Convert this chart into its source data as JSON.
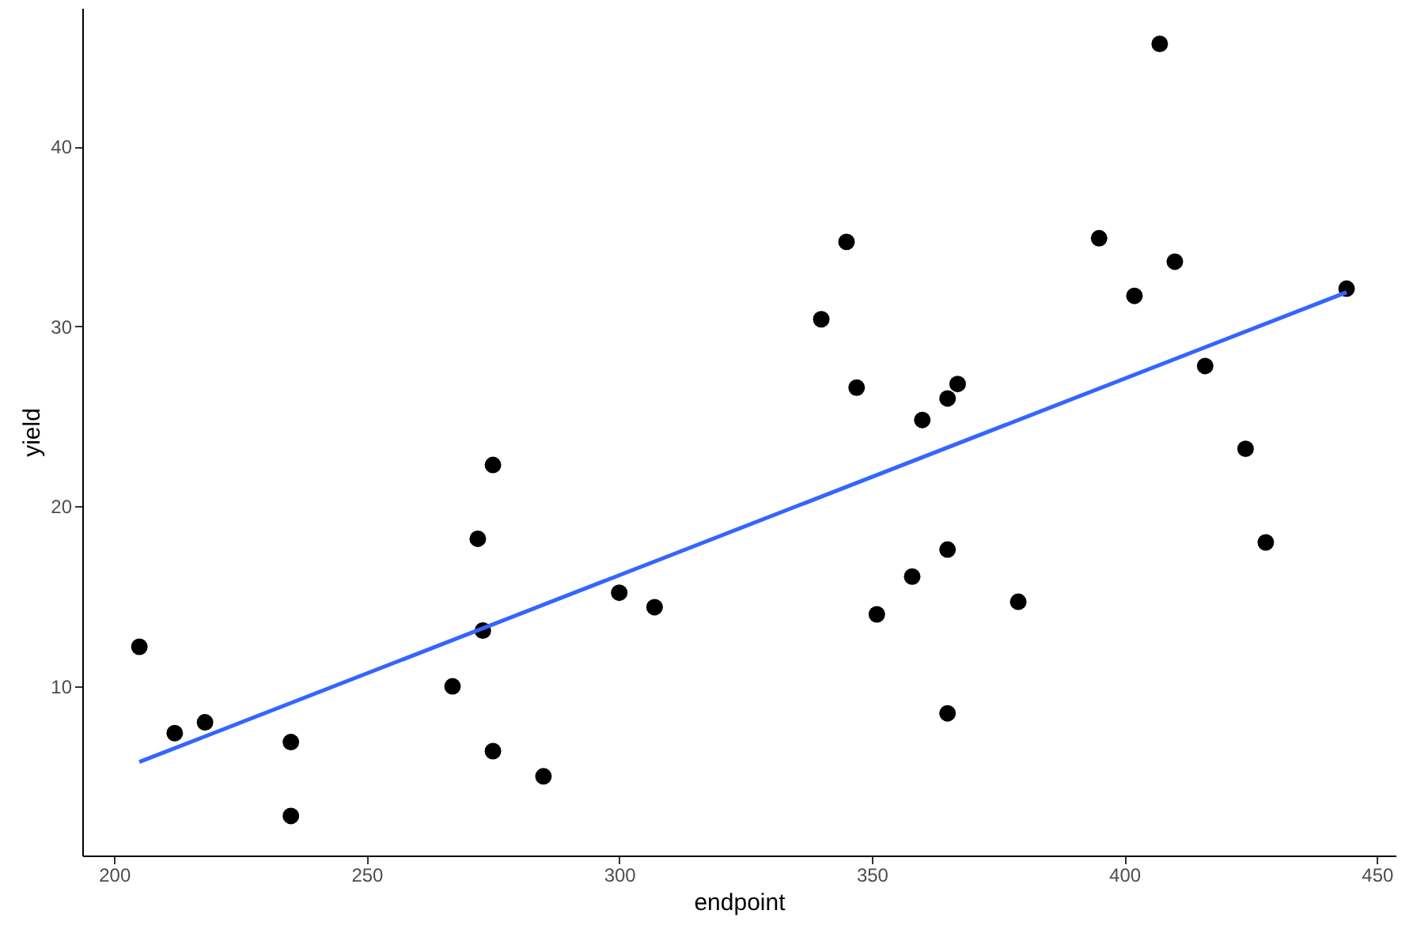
{
  "chart_data": {
    "type": "scatter",
    "xlabel": "endpoint",
    "ylabel": "yield",
    "xlim": [
      193.7,
      453.7
    ],
    "ylim": [
      0.6,
      47.7
    ],
    "xticks": [
      200,
      250,
      300,
      350,
      400,
      450
    ],
    "yticks": [
      10,
      20,
      30,
      40
    ],
    "grid": false,
    "series": [
      {
        "color": "#000000",
        "marker": "circle",
        "x": [
          235,
          307,
          212,
          365,
          218,
          235,
          285,
          205,
          267,
          300,
          367,
          351,
          379,
          275,
          365,
          275,
          360,
          365,
          395,
          272,
          424,
          428,
          273,
          358,
          444,
          345,
          402,
          410,
          340,
          347,
          416,
          407
        ],
        "values": [
          6.9,
          14.4,
          7.4,
          8.5,
          8.0,
          2.8,
          5.0,
          12.2,
          10.0,
          15.2,
          26.8,
          14.0,
          14.7,
          6.4,
          17.6,
          22.3,
          24.8,
          26.0,
          34.9,
          18.2,
          23.2,
          18.0,
          13.1,
          16.1,
          32.1,
          34.7,
          31.7,
          33.6,
          30.4,
          26.6,
          27.8,
          45.7
        ]
      },
      {
        "type": "line",
        "color": "#3366ff",
        "line_style": "solid",
        "x": [
          205,
          444
        ],
        "values": [
          5.8,
          31.9
        ]
      }
    ]
  }
}
